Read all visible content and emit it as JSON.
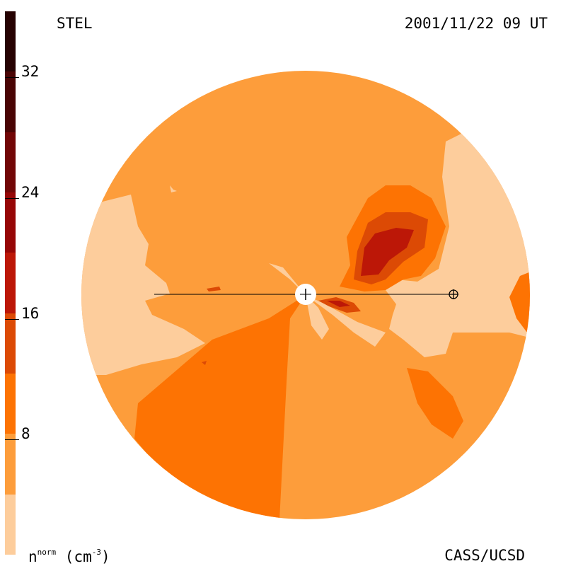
{
  "header": {
    "observatory": "STEL",
    "timestamp": "2001/11/22 09 UT"
  },
  "footer": {
    "unit_base": "n",
    "unit_sup": "norm",
    "unit_rest": " (cm",
    "unit_exp": "-3",
    "unit_close": ")",
    "credit": "CASS/UCSD"
  },
  "colorbar": {
    "ticks": [
      {
        "label": "8",
        "value": 8
      },
      {
        "label": "16",
        "value": 16
      },
      {
        "label": "24",
        "value": 24
      },
      {
        "label": "32",
        "value": 32
      }
    ],
    "range": [
      0,
      36
    ],
    "levels": [
      {
        "from": 0,
        "to": 4,
        "color": "#fdcd9c"
      },
      {
        "from": 4,
        "to": 8,
        "color": "#fd9d3b"
      },
      {
        "from": 8,
        "to": 12,
        "color": "#fd7303"
      },
      {
        "from": 12,
        "to": 16,
        "color": "#dc4a05"
      },
      {
        "from": 16,
        "to": 20,
        "color": "#bc1707"
      },
      {
        "from": 20,
        "to": 24,
        "color": "#960606"
      },
      {
        "from": 24,
        "to": 28,
        "color": "#720606"
      },
      {
        "from": 28,
        "to": 32,
        "color": "#4a0404"
      },
      {
        "from": 32,
        "to": 36,
        "color": "#260202"
      }
    ]
  },
  "map": {
    "background_color": "#fd9d3b",
    "sun_symbol": "sun-icon",
    "earth_symbol": "earth-icon"
  }
}
